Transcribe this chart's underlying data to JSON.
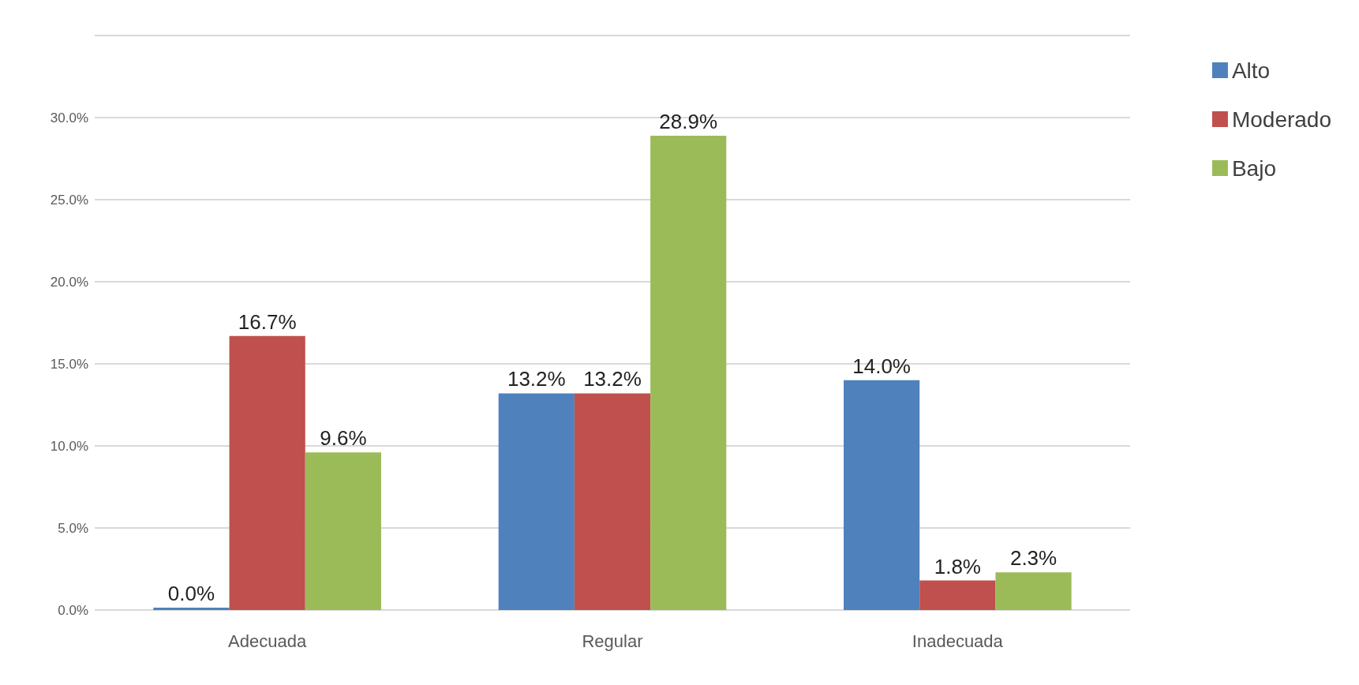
{
  "chart_data": {
    "type": "bar",
    "categories": [
      "Adecuada",
      "Regular",
      "Inadecuada"
    ],
    "series": [
      {
        "name": "Alto",
        "color": "#4f81bd",
        "values": [
          0.0,
          13.2,
          14.0
        ],
        "value_labels": [
          "0.0%",
          "13.2%",
          "14.0%"
        ]
      },
      {
        "name": "Moderado",
        "color": "#c0504d",
        "values": [
          16.7,
          13.2,
          1.8
        ],
        "value_labels": [
          "16.7%",
          "13.2%",
          "1.8%"
        ]
      },
      {
        "name": "Bajo",
        "color": "#9bbb59",
        "values": [
          9.6,
          28.9,
          2.3
        ],
        "value_labels": [
          "9.6%",
          "28.9%",
          "2.3%"
        ]
      }
    ],
    "ylim": [
      0,
      35
    ],
    "yticks": [
      {
        "value": 0,
        "label": "0.0%"
      },
      {
        "value": 5,
        "label": "5.0%"
      },
      {
        "value": 10,
        "label": "10.0%"
      },
      {
        "value": 15,
        "label": "15.0%"
      },
      {
        "value": 20,
        "label": "20.0%"
      },
      {
        "value": 25,
        "label": "25.0%"
      },
      {
        "value": 30,
        "label": "30.0%"
      },
      {
        "value": 35,
        "label": null
      }
    ],
    "grid": "y",
    "legend": "right"
  }
}
